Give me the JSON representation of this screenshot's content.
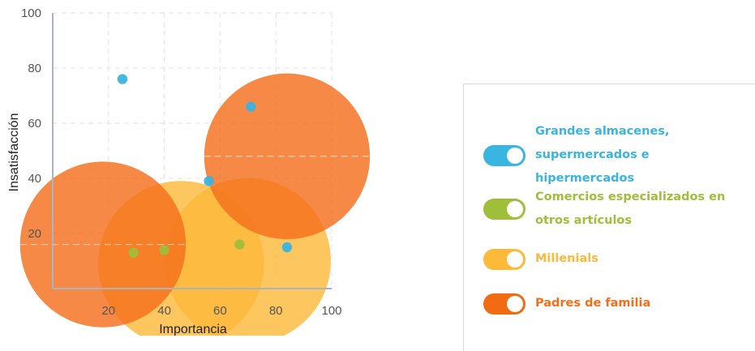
{
  "chart_data": {
    "type": "bubble",
    "xlabel": "Importancia",
    "ylabel": "Insatisfacción",
    "xlim": [
      0,
      100
    ],
    "ylim": [
      0,
      100
    ],
    "xticks": [
      20,
      40,
      60,
      80,
      100
    ],
    "yticks": [
      20,
      40,
      60,
      80,
      100
    ],
    "grid": true,
    "legend_position": "right",
    "series": [
      {
        "name": "Grandes almacenes, supermercados e hipermercados",
        "color": "#3ab4e0",
        "points": [
          {
            "x": 25,
            "y": 76,
            "size": 1
          },
          {
            "x": 56,
            "y": 39,
            "size": 1
          },
          {
            "x": 71,
            "y": 66,
            "size": 1
          },
          {
            "x": 84,
            "y": 15,
            "size": 1
          }
        ]
      },
      {
        "name": "Comercios especializados en otros artículos",
        "color": "#9fbe3a",
        "points": [
          {
            "x": 29,
            "y": 13,
            "size": 1
          },
          {
            "x": 40,
            "y": 14,
            "size": 1
          },
          {
            "x": 67,
            "y": 16,
            "size": 1
          }
        ]
      },
      {
        "name": "Millenials",
        "color": "#fdb93a",
        "points": [
          {
            "x": 46,
            "y": 9,
            "size": 55
          },
          {
            "x": 70,
            "y": 10,
            "size": 55
          }
        ]
      },
      {
        "name": "Padres de familia",
        "color": "#f46f1c",
        "points": [
          {
            "x": 18,
            "y": 16,
            "size": 55
          },
          {
            "x": 84,
            "y": 48,
            "size": 55
          }
        ]
      }
    ]
  },
  "legend": {
    "items": [
      {
        "label_line1": "Grandes almacenes,",
        "label_line2": "supermercados e hipermercados",
        "color": "#3ab4e0",
        "toggle_color": "#3ab4e0"
      },
      {
        "label_line1": "Comercios especializados en",
        "label_line2": "otros artículos",
        "color": "#9fbe3a",
        "toggle_color": "#9fbe3a"
      },
      {
        "label_line1": "Millenials",
        "label_line2": "",
        "color": "#fdb93a",
        "toggle_color": "#fdb93a"
      },
      {
        "label_line1": "Padres de familia",
        "label_line2": "",
        "color": "#f46f1c",
        "toggle_color": "#f26a12"
      }
    ]
  }
}
